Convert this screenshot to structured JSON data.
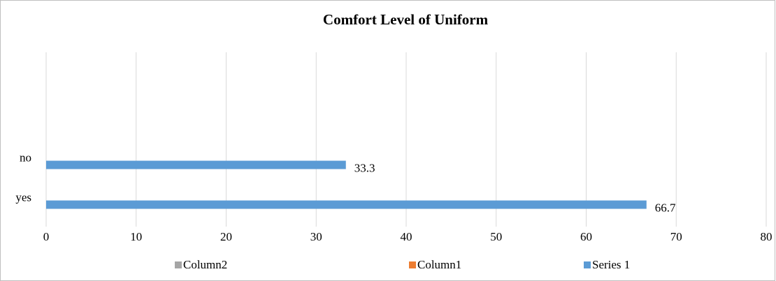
{
  "chart_data": {
    "type": "bar",
    "orientation": "horizontal",
    "title": "Comfort Level of Uniform",
    "categories": [
      "yes",
      "no"
    ],
    "series": [
      {
        "name": "Column2",
        "color": "#a5a5a5",
        "values": [
          null,
          null
        ]
      },
      {
        "name": "Column1",
        "color": "#ed7d31",
        "values": [
          null,
          null
        ]
      },
      {
        "name": "Series 1",
        "color": "#5b9bd5",
        "values": [
          66.7,
          33.3
        ]
      }
    ],
    "xlim": [
      0,
      80
    ],
    "xticks": [
      0,
      10,
      20,
      30,
      40,
      50,
      60,
      70,
      80
    ],
    "grid": true,
    "legend": "bottom"
  }
}
